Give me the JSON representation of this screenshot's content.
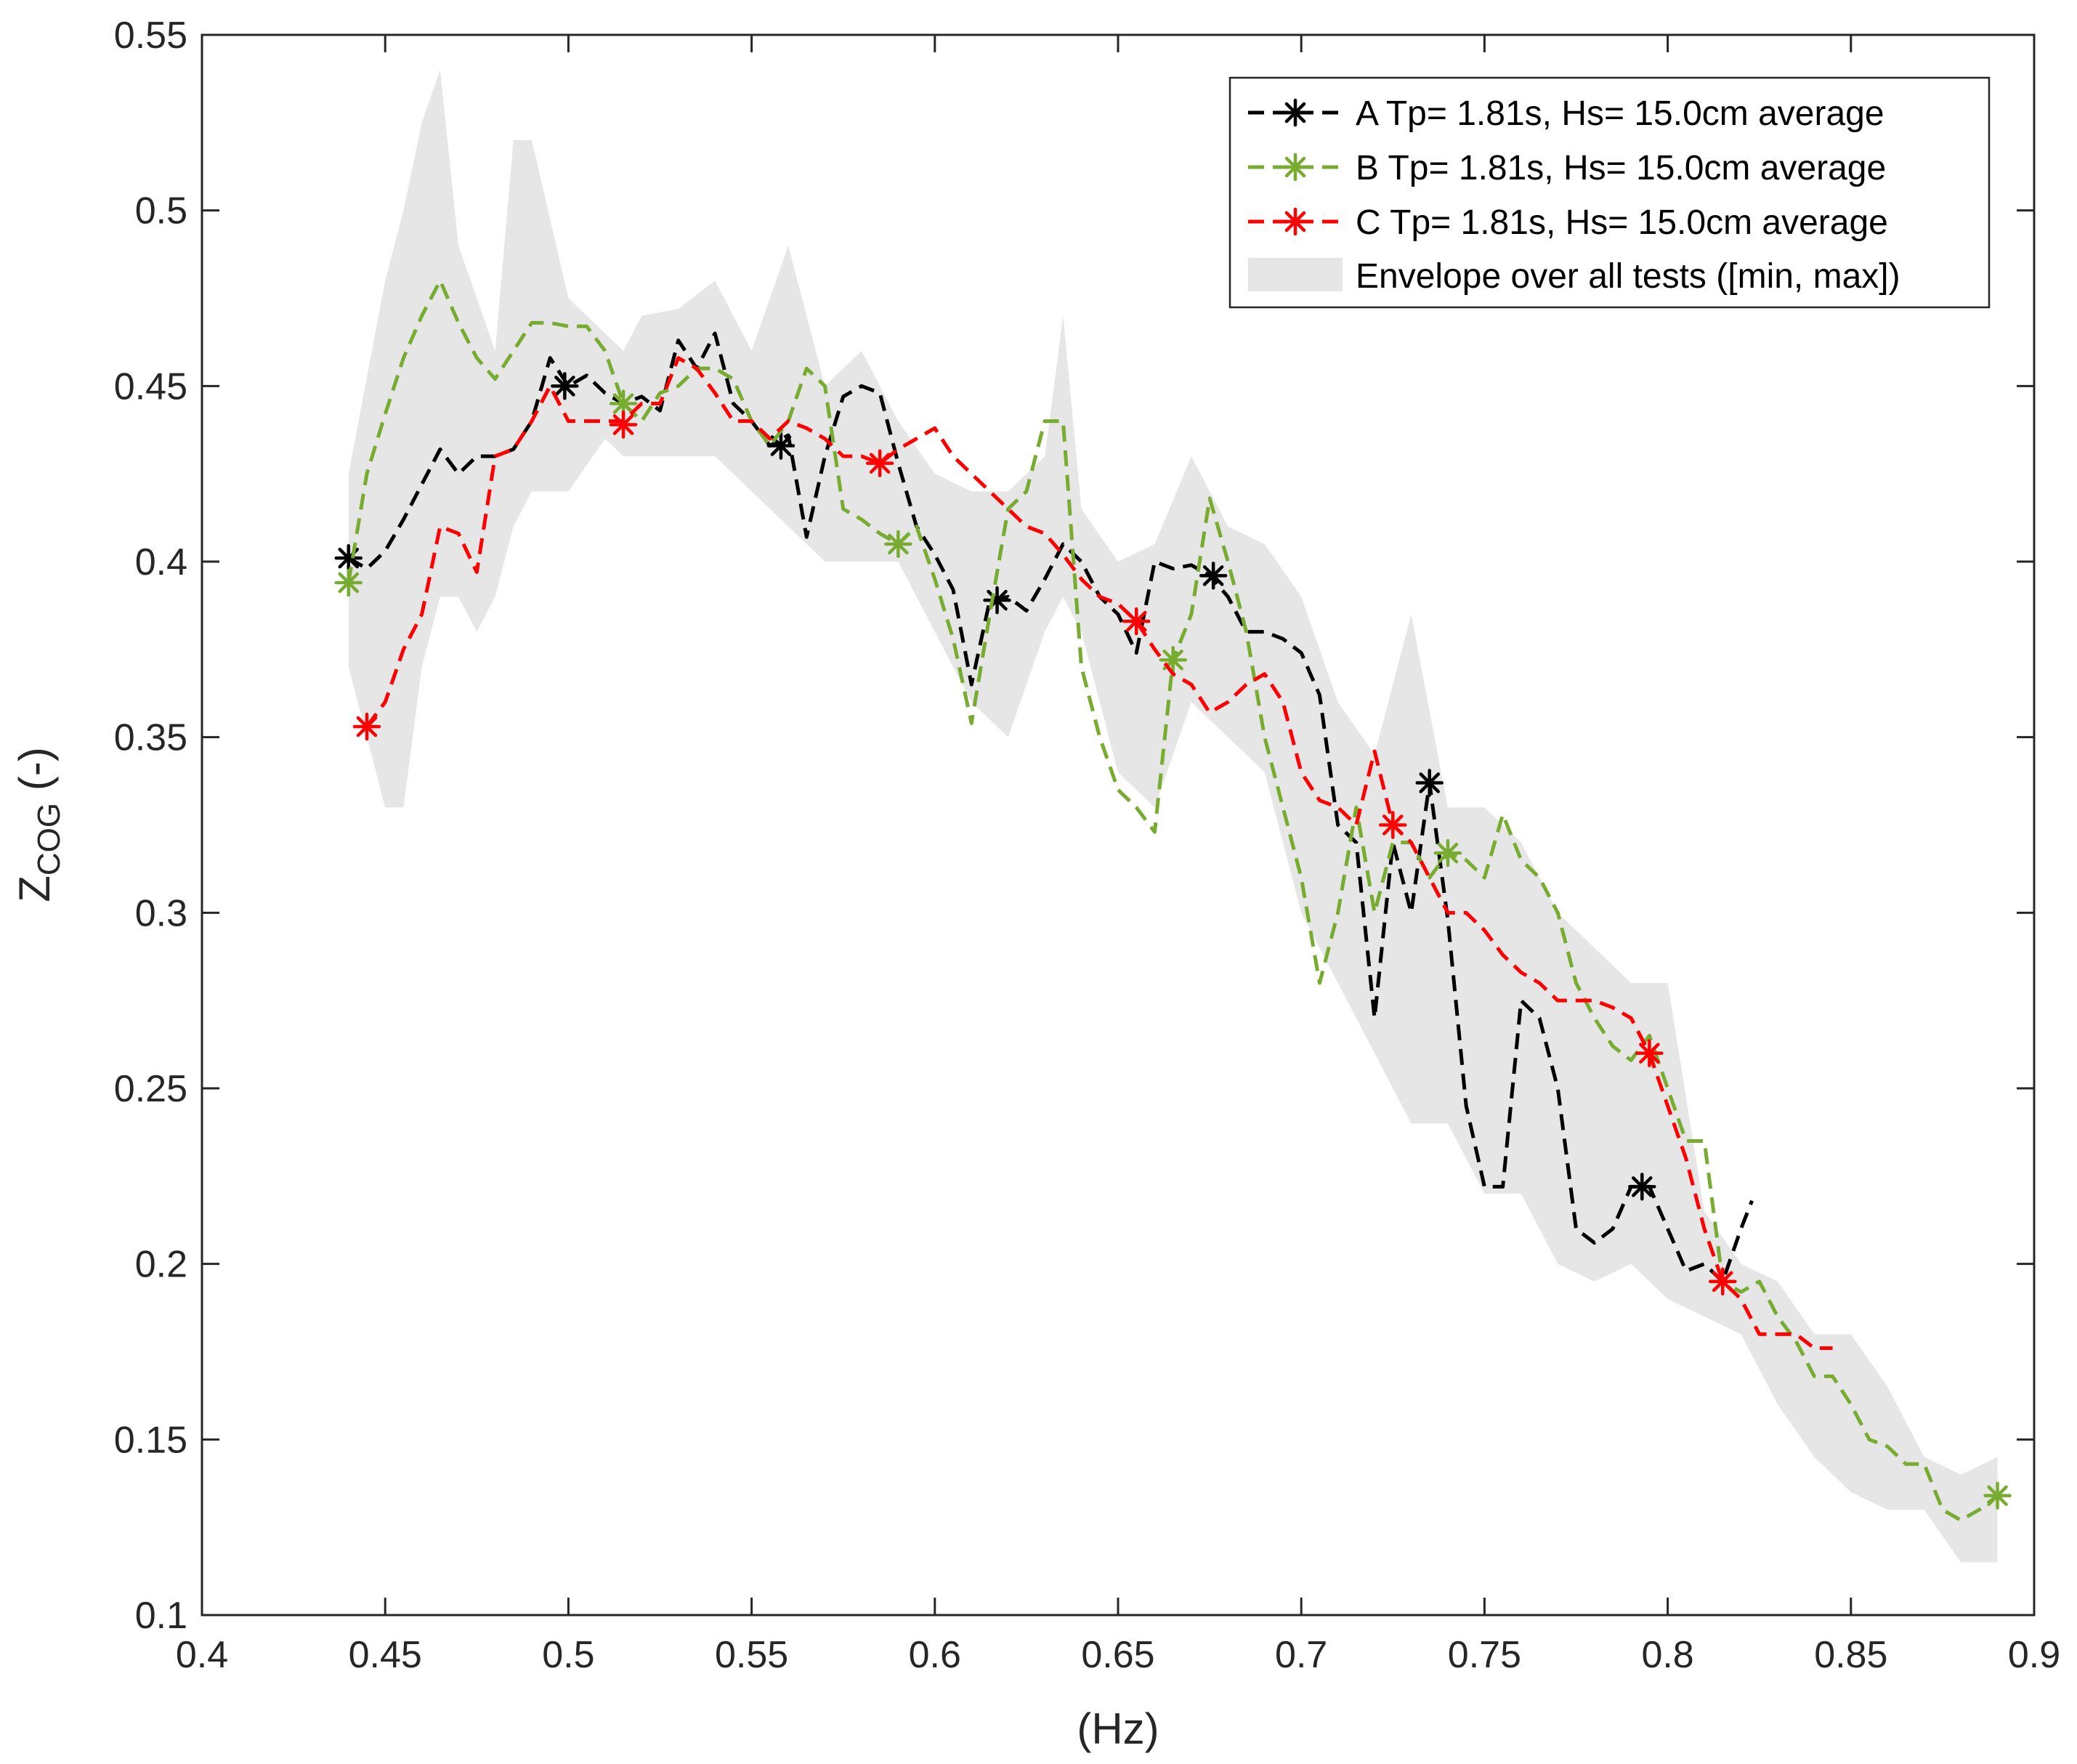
{
  "chart_data": {
    "type": "line",
    "title": "",
    "xlabel": "(Hz)",
    "ylabel_main": "Z",
    "ylabel_sub": "COG",
    "ylabel_suffix": " (-)",
    "xlim": [
      0.4,
      0.9
    ],
    "ylim": [
      0.1,
      0.55
    ],
    "x_ticks": [
      0.4,
      0.45,
      0.5,
      0.55,
      0.6,
      0.65,
      0.7,
      0.75,
      0.8,
      0.85,
      0.9
    ],
    "x_tick_labels": [
      "0.4",
      "0.45",
      "0.5",
      "0.55",
      "0.6",
      "0.65",
      "0.7",
      "0.75",
      "0.8",
      "0.85",
      "0.9"
    ],
    "y_ticks": [
      0.1,
      0.15,
      0.2,
      0.25,
      0.3,
      0.35,
      0.4,
      0.45,
      0.5,
      0.55
    ],
    "y_tick_labels": [
      "0.1",
      "0.15",
      "0.2",
      "0.25",
      "0.3",
      "0.35",
      "0.4",
      "0.45",
      "0.5",
      "0.55"
    ],
    "grid": false,
    "legend_position": "top-right",
    "envelope": {
      "name": "Envelope over all tests ([min, max])",
      "color": "#e6e6e6",
      "x": [
        0.44,
        0.45,
        0.455,
        0.46,
        0.465,
        0.47,
        0.475,
        0.48,
        0.485,
        0.49,
        0.5,
        0.51,
        0.515,
        0.52,
        0.53,
        0.54,
        0.55,
        0.56,
        0.57,
        0.58,
        0.59,
        0.6,
        0.61,
        0.62,
        0.63,
        0.635,
        0.64,
        0.65,
        0.66,
        0.67,
        0.68,
        0.69,
        0.7,
        0.71,
        0.72,
        0.73,
        0.74,
        0.75,
        0.76,
        0.77,
        0.78,
        0.79,
        0.8,
        0.81,
        0.82,
        0.83,
        0.84,
        0.85,
        0.86,
        0.87,
        0.88,
        0.89
      ],
      "upper": [
        0.425,
        0.48,
        0.5,
        0.525,
        0.54,
        0.49,
        0.475,
        0.46,
        0.52,
        0.52,
        0.475,
        0.465,
        0.46,
        0.47,
        0.472,
        0.48,
        0.46,
        0.49,
        0.45,
        0.46,
        0.44,
        0.425,
        0.42,
        0.42,
        0.43,
        0.47,
        0.415,
        0.4,
        0.405,
        0.43,
        0.41,
        0.405,
        0.39,
        0.36,
        0.345,
        0.385,
        0.33,
        0.33,
        0.32,
        0.3,
        0.29,
        0.28,
        0.28,
        0.215,
        0.2,
        0.195,
        0.18,
        0.18,
        0.165,
        0.145,
        0.14,
        0.145
      ],
      "lower": [
        0.37,
        0.33,
        0.33,
        0.37,
        0.39,
        0.39,
        0.38,
        0.39,
        0.41,
        0.42,
        0.42,
        0.435,
        0.43,
        0.43,
        0.43,
        0.43,
        0.42,
        0.41,
        0.4,
        0.4,
        0.4,
        0.38,
        0.36,
        0.35,
        0.38,
        0.39,
        0.38,
        0.34,
        0.33,
        0.36,
        0.35,
        0.34,
        0.3,
        0.28,
        0.26,
        0.24,
        0.24,
        0.22,
        0.22,
        0.2,
        0.195,
        0.2,
        0.19,
        0.185,
        0.18,
        0.16,
        0.145,
        0.135,
        0.13,
        0.13,
        0.115,
        0.115
      ]
    },
    "series": [
      {
        "name": "A Tp= 1.81s, Hs= 15.0cm average",
        "color": "#000000",
        "x": [
          0.44,
          0.445,
          0.45,
          0.455,
          0.46,
          0.465,
          0.47,
          0.475,
          0.48,
          0.485,
          0.49,
          0.495,
          0.5,
          0.505,
          0.51,
          0.515,
          0.52,
          0.525,
          0.53,
          0.535,
          0.54,
          0.545,
          0.55,
          0.555,
          0.56,
          0.565,
          0.57,
          0.575,
          0.58,
          0.585,
          0.59,
          0.595,
          0.6,
          0.605,
          0.61,
          0.615,
          0.62,
          0.625,
          0.63,
          0.635,
          0.64,
          0.645,
          0.65,
          0.655,
          0.66,
          0.665,
          0.67,
          0.675,
          0.68,
          0.685,
          0.69,
          0.695,
          0.7,
          0.705,
          0.71,
          0.715,
          0.72,
          0.725,
          0.73,
          0.735,
          0.74,
          0.745,
          0.75,
          0.755,
          0.76,
          0.765,
          0.77,
          0.775,
          0.78,
          0.785,
          0.79,
          0.795,
          0.8,
          0.805,
          0.81,
          0.815,
          0.82,
          0.823
        ],
        "y": [
          0.401,
          0.398,
          0.403,
          0.412,
          0.422,
          0.432,
          0.425,
          0.43,
          0.43,
          0.432,
          0.44,
          0.458,
          0.45,
          0.453,
          0.448,
          0.445,
          0.447,
          0.443,
          0.463,
          0.455,
          0.465,
          0.445,
          0.44,
          0.433,
          0.436,
          0.407,
          0.43,
          0.447,
          0.45,
          0.448,
          0.428,
          0.41,
          0.402,
          0.392,
          0.365,
          0.389,
          0.39,
          0.386,
          0.395,
          0.405,
          0.4,
          0.39,
          0.385,
          0.374,
          0.4,
          0.398,
          0.399,
          0.396,
          0.39,
          0.38,
          0.38,
          0.378,
          0.374,
          0.362,
          0.325,
          0.32,
          0.27,
          0.32,
          0.3,
          0.337,
          0.298,
          0.245,
          0.222,
          0.222,
          0.275,
          0.27,
          0.25,
          0.21,
          0.206,
          0.21,
          0.222,
          0.222,
          0.21,
          0.198,
          0.2,
          0.195,
          0.21,
          0.218
        ],
        "markers_x": [
          0.44,
          0.499,
          0.558,
          0.617,
          0.676,
          0.735,
          0.793
        ],
        "markers_y": [
          0.401,
          0.45,
          0.433,
          0.389,
          0.396,
          0.337,
          0.222
        ]
      },
      {
        "name": "B Tp= 1.81s, Hs= 15.0cm average",
        "color": "#77ac30",
        "x": [
          0.44,
          0.445,
          0.45,
          0.455,
          0.46,
          0.465,
          0.47,
          0.475,
          0.48,
          0.485,
          0.49,
          0.495,
          0.5,
          0.505,
          0.51,
          0.515,
          0.52,
          0.525,
          0.53,
          0.535,
          0.54,
          0.545,
          0.55,
          0.555,
          0.56,
          0.565,
          0.57,
          0.575,
          0.58,
          0.585,
          0.59,
          0.595,
          0.6,
          0.605,
          0.61,
          0.615,
          0.62,
          0.625,
          0.63,
          0.635,
          0.64,
          0.645,
          0.65,
          0.655,
          0.66,
          0.665,
          0.67,
          0.675,
          0.68,
          0.685,
          0.69,
          0.695,
          0.7,
          0.705,
          0.71,
          0.715,
          0.72,
          0.725,
          0.73,
          0.735,
          0.74,
          0.745,
          0.75,
          0.755,
          0.76,
          0.765,
          0.77,
          0.775,
          0.78,
          0.785,
          0.79,
          0.795,
          0.8,
          0.805,
          0.81,
          0.815,
          0.82,
          0.825,
          0.83,
          0.835,
          0.84,
          0.845,
          0.85,
          0.855,
          0.86,
          0.865,
          0.87,
          0.875,
          0.88,
          0.885,
          0.89
        ],
        "y": [
          0.394,
          0.425,
          0.442,
          0.458,
          0.47,
          0.48,
          0.468,
          0.458,
          0.452,
          0.46,
          0.468,
          0.468,
          0.467,
          0.467,
          0.46,
          0.445,
          0.44,
          0.448,
          0.45,
          0.455,
          0.455,
          0.452,
          0.44,
          0.433,
          0.44,
          0.455,
          0.45,
          0.415,
          0.412,
          0.408,
          0.405,
          0.41,
          0.395,
          0.378,
          0.354,
          0.385,
          0.415,
          0.42,
          0.44,
          0.44,
          0.37,
          0.35,
          0.335,
          0.33,
          0.323,
          0.372,
          0.385,
          0.418,
          0.4,
          0.38,
          0.35,
          0.33,
          0.31,
          0.28,
          0.3,
          0.33,
          0.3,
          0.32,
          0.32,
          0.31,
          0.317,
          0.315,
          0.31,
          0.328,
          0.315,
          0.31,
          0.3,
          0.28,
          0.27,
          0.262,
          0.258,
          0.265,
          0.25,
          0.235,
          0.235,
          0.195,
          0.192,
          0.195,
          0.185,
          0.178,
          0.168,
          0.168,
          0.16,
          0.15,
          0.148,
          0.143,
          0.143,
          0.13,
          0.127,
          0.13,
          0.134
        ],
        "markers_x": [
          0.44,
          0.515,
          0.59,
          0.665,
          0.74,
          0.815,
          0.89
        ],
        "markers_y": [
          0.394,
          0.445,
          0.405,
          0.372,
          0.317,
          0.195,
          0.134
        ]
      },
      {
        "name": "C Tp= 1.81s, Hs= 15.0cm average",
        "color": "#ff0000",
        "x": [
          0.445,
          0.45,
          0.455,
          0.46,
          0.465,
          0.47,
          0.475,
          0.48,
          0.485,
          0.49,
          0.495,
          0.5,
          0.505,
          0.51,
          0.515,
          0.52,
          0.525,
          0.53,
          0.535,
          0.54,
          0.545,
          0.55,
          0.555,
          0.56,
          0.565,
          0.57,
          0.575,
          0.58,
          0.585,
          0.59,
          0.595,
          0.6,
          0.605,
          0.61,
          0.615,
          0.62,
          0.625,
          0.63,
          0.635,
          0.64,
          0.645,
          0.65,
          0.655,
          0.66,
          0.665,
          0.67,
          0.675,
          0.68,
          0.685,
          0.69,
          0.695,
          0.7,
          0.705,
          0.71,
          0.715,
          0.72,
          0.725,
          0.73,
          0.735,
          0.74,
          0.745,
          0.75,
          0.755,
          0.76,
          0.765,
          0.77,
          0.775,
          0.78,
          0.785,
          0.79,
          0.795,
          0.8,
          0.805,
          0.81,
          0.815,
          0.82,
          0.825,
          0.83,
          0.835,
          0.84,
          0.845
        ],
        "y": [
          0.353,
          0.36,
          0.375,
          0.385,
          0.41,
          0.408,
          0.397,
          0.43,
          0.432,
          0.44,
          0.45,
          0.44,
          0.44,
          0.44,
          0.44,
          0.445,
          0.445,
          0.458,
          0.455,
          0.448,
          0.44,
          0.44,
          0.435,
          0.44,
          0.438,
          0.435,
          0.43,
          0.43,
          0.428,
          0.432,
          0.435,
          0.438,
          0.43,
          0.425,
          0.42,
          0.415,
          0.41,
          0.408,
          0.402,
          0.395,
          0.39,
          0.388,
          0.383,
          0.375,
          0.368,
          0.365,
          0.357,
          0.36,
          0.365,
          0.368,
          0.36,
          0.34,
          0.332,
          0.33,
          0.325,
          0.346,
          0.325,
          0.32,
          0.31,
          0.3,
          0.3,
          0.295,
          0.288,
          0.283,
          0.28,
          0.275,
          0.275,
          0.275,
          0.273,
          0.27,
          0.26,
          0.245,
          0.23,
          0.21,
          0.195,
          0.19,
          0.18,
          0.18,
          0.18,
          0.176,
          0.176
        ],
        "markers_x": [
          0.445,
          0.515,
          0.585,
          0.655,
          0.725,
          0.795,
          0.815
        ],
        "markers_y": [
          0.353,
          0.439,
          0.428,
          0.383,
          0.325,
          0.26,
          0.195
        ]
      }
    ]
  }
}
